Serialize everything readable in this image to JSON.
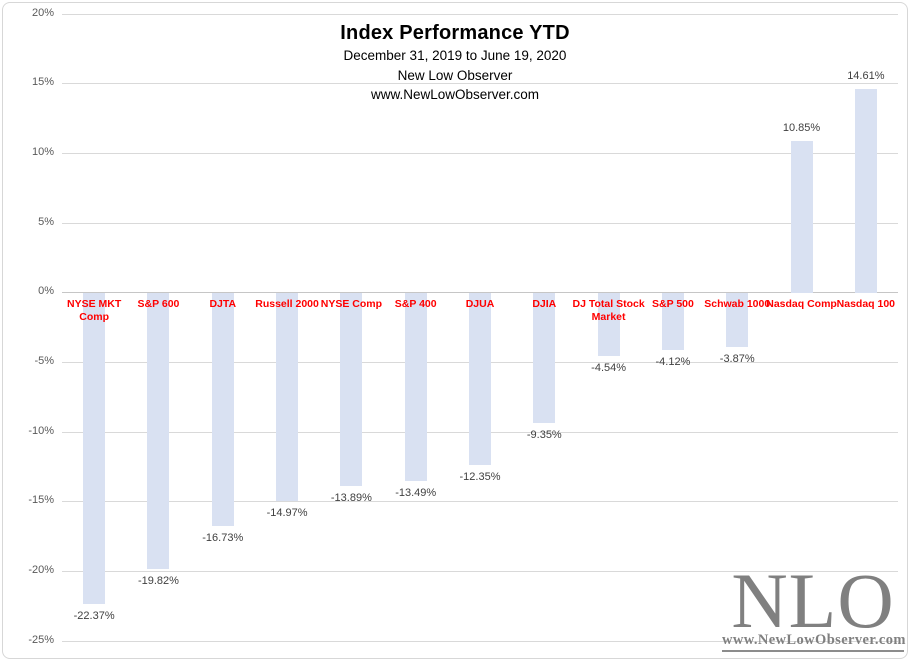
{
  "header": {
    "title": "Index Performance YTD",
    "subtitle": "December 31, 2019 to June 19, 2020",
    "source": "New Low Observer",
    "website": "www.NewLowObserver.com"
  },
  "chart_data": {
    "type": "bar",
    "title": "Index Performance YTD",
    "subtitle": "December 31, 2019 to June 19, 2020",
    "categories": [
      "NYSE MKT Comp",
      "S&P 600",
      "DJTA",
      "Russell 2000",
      "NYSE Comp",
      "S&P 400",
      "DJUA",
      "DJIA",
      "DJ Total Stock Market",
      "S&P 500",
      "Schwab 1000",
      "Nasdaq Comp",
      "Nasdaq 100"
    ],
    "category_lines": [
      [
        "NYSE MKT",
        "Comp"
      ],
      [
        "S&P 600"
      ],
      [
        "DJTA"
      ],
      [
        "Russell 2000"
      ],
      [
        "NYSE Comp"
      ],
      [
        "S&P 400"
      ],
      [
        "DJUA"
      ],
      [
        "DJIA"
      ],
      [
        "DJ Total Stock",
        "Market"
      ],
      [
        "S&P 500"
      ],
      [
        "Schwab 1000"
      ],
      [
        "Nasdaq Comp"
      ],
      [
        "Nasdaq 100"
      ]
    ],
    "values": [
      -22.37,
      -19.82,
      -16.73,
      -14.97,
      -13.89,
      -13.49,
      -12.35,
      -9.35,
      -4.54,
      -4.12,
      -3.87,
      10.85,
      14.61
    ],
    "value_labels": [
      "-22.37%",
      "-19.82%",
      "-16.73%",
      "-14.97%",
      "-13.89%",
      "-13.49%",
      "-12.35%",
      "-9.35%",
      "-4.54%",
      "-4.12%",
      "-3.87%",
      "10.85%",
      "14.61%"
    ],
    "xlabel": "",
    "ylabel": "",
    "ylim": [
      -25,
      20
    ],
    "ytick_step": 5,
    "ytick_labels": [
      "20%",
      "15%",
      "10%",
      "5%",
      "0%",
      "-5%",
      "-10%",
      "-15%",
      "-20%",
      "-25%"
    ],
    "grid": true,
    "legend": "none",
    "colors": {
      "bar_fill": "#d9e1f2",
      "category_label": "#ff0000",
      "value_label": "#404040",
      "ytick_label": "#595959",
      "gridline": "#d9d9d9",
      "logo_gray": "#808080"
    }
  },
  "logo": {
    "text": "NLO",
    "url": "www.NewLowObserver.com"
  }
}
